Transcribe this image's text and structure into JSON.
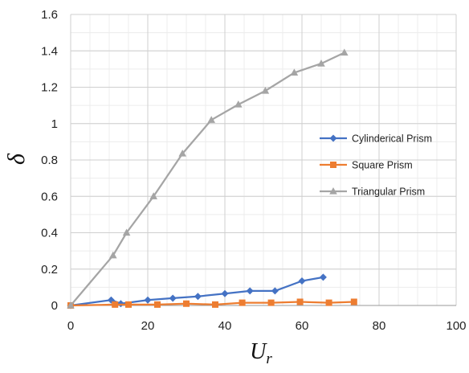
{
  "chart_data": {
    "type": "line",
    "title": "",
    "xlabel": "U",
    "xlabel_subscript": "r",
    "ylabel": "δ",
    "xlim": [
      0,
      100
    ],
    "ylim": [
      0,
      1.6
    ],
    "xticks": [
      0,
      20,
      40,
      60,
      80,
      100
    ],
    "yticks": [
      0,
      0.2,
      0.4,
      0.6,
      0.8,
      1,
      1.2,
      1.4,
      1.6
    ],
    "xtick_labels": [
      "0",
      "20",
      "40",
      "60",
      "80",
      "100"
    ],
    "ytick_labels": [
      "0",
      "0.2",
      "0.4",
      "0.6",
      "0.8",
      "1",
      "1.2",
      "1.4",
      "1.6"
    ],
    "grid": true,
    "legend_position": "right",
    "series": [
      {
        "name": "Cylinderical Prism",
        "color": "#4472C4",
        "marker": "diamond",
        "points": [
          [
            0,
            0
          ],
          [
            10.5,
            0.03
          ],
          [
            13,
            0.01
          ],
          [
            20,
            0.03
          ],
          [
            26.5,
            0.04
          ],
          [
            33,
            0.05
          ],
          [
            40,
            0.065
          ],
          [
            46.5,
            0.08
          ],
          [
            53,
            0.08
          ],
          [
            60,
            0.135
          ],
          [
            65.5,
            0.155
          ]
        ]
      },
      {
        "name": "Square Prism",
        "color": "#ED7D31",
        "marker": "square",
        "points": [
          [
            0,
            0
          ],
          [
            11.5,
            0.005
          ],
          [
            15,
            0.005
          ],
          [
            22.5,
            0.005
          ],
          [
            30,
            0.01
          ],
          [
            37.5,
            0.005
          ],
          [
            44.5,
            0.015
          ],
          [
            52,
            0.015
          ],
          [
            59.5,
            0.02
          ],
          [
            67,
            0.015
          ],
          [
            73.5,
            0.02
          ]
        ]
      },
      {
        "name": "Triangular Prism",
        "color": "#A5A5A5",
        "marker": "triangle",
        "points": [
          [
            0,
            0
          ],
          [
            11,
            0.275
          ],
          [
            14.5,
            0.4
          ],
          [
            21.5,
            0.6
          ],
          [
            29,
            0.835
          ],
          [
            36.5,
            1.02
          ],
          [
            43.5,
            1.105
          ],
          [
            50.5,
            1.18
          ],
          [
            58,
            1.28
          ],
          [
            65,
            1.33
          ],
          [
            71,
            1.39
          ]
        ]
      }
    ]
  }
}
